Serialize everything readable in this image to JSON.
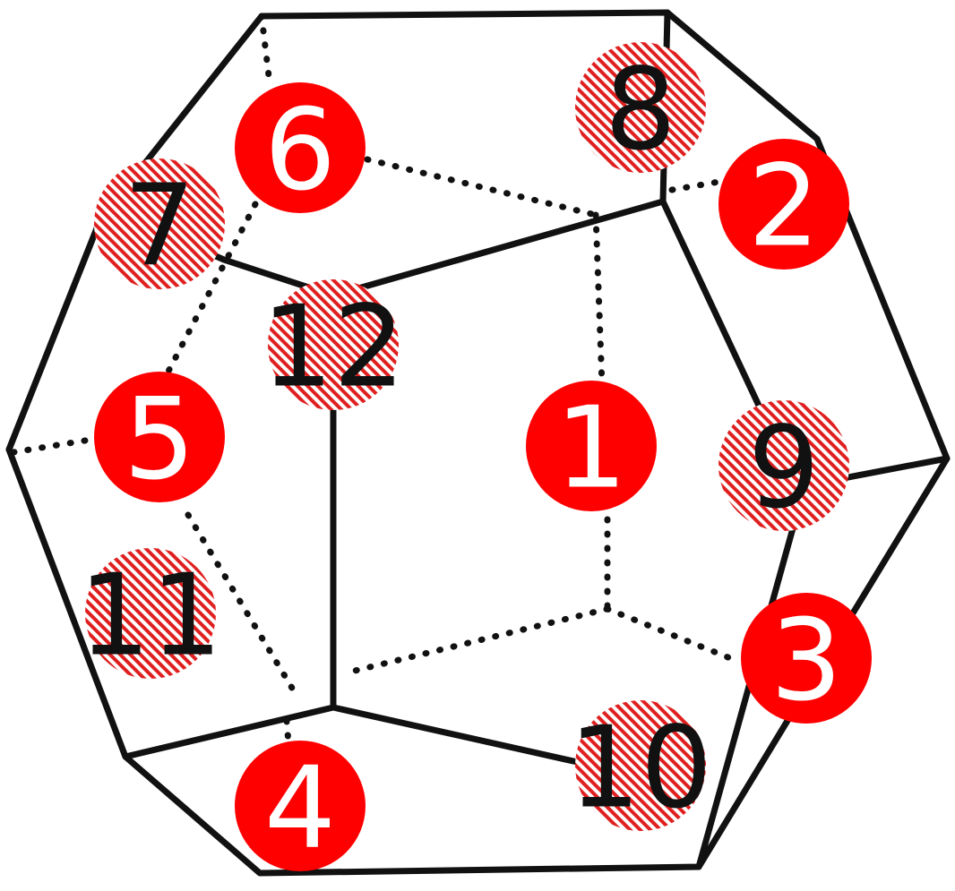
{
  "colors": {
    "edge": "#111111",
    "label_fill": "#ff0000",
    "label_text_solid": "#ffffff",
    "label_text_hatched": "#111111",
    "background": "#ffffff"
  },
  "faces": [
    {
      "id": "face-1",
      "label": "1",
      "style": "solid"
    },
    {
      "id": "face-2",
      "label": "2",
      "style": "solid"
    },
    {
      "id": "face-3",
      "label": "3",
      "style": "solid"
    },
    {
      "id": "face-4",
      "label": "4",
      "style": "solid"
    },
    {
      "id": "face-5",
      "label": "5",
      "style": "solid"
    },
    {
      "id": "face-6",
      "label": "6",
      "style": "solid"
    },
    {
      "id": "face-7",
      "label": "7",
      "style": "hatched"
    },
    {
      "id": "face-8",
      "label": "8",
      "style": "hatched"
    },
    {
      "id": "face-9",
      "label": "9",
      "style": "hatched"
    },
    {
      "id": "face-10",
      "label": "10",
      "style": "hatched"
    },
    {
      "id": "face-11",
      "label": "11",
      "style": "hatched"
    },
    {
      "id": "face-12",
      "label": "12",
      "style": "hatched"
    }
  ]
}
